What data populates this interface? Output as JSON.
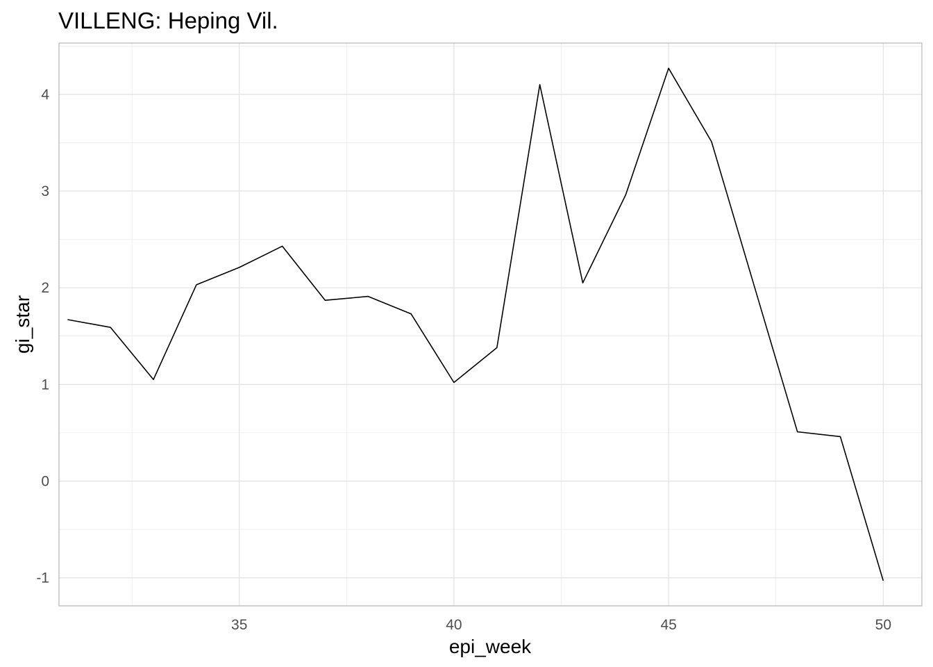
{
  "chart_data": {
    "type": "line",
    "title": "VILLENG: Heping Vil.",
    "xlabel": "epi_week",
    "ylabel": "gi_star",
    "x": [
      31,
      32,
      33,
      34,
      35,
      36,
      37,
      38,
      39,
      40,
      41,
      42,
      43,
      44,
      45,
      46,
      47,
      48,
      49,
      50
    ],
    "series": [
      {
        "values": [
          1.67,
          1.59,
          1.05,
          2.03,
          2.21,
          2.43,
          1.87,
          1.91,
          1.73,
          1.02,
          1.38,
          4.1,
          2.05,
          2.96,
          4.27,
          3.51,
          2.01,
          0.51,
          0.46,
          -1.03
        ],
        "color": "#000000"
      }
    ],
    "xlim": [
      30.8,
      50.9
    ],
    "ylim": [
      -1.29,
      4.53
    ],
    "x_ticks": [
      "35",
      "40",
      "45",
      "50"
    ],
    "y_ticks": [
      "-1",
      "0",
      "1",
      "2",
      "3",
      "4"
    ],
    "grid": true,
    "legend": "none"
  }
}
